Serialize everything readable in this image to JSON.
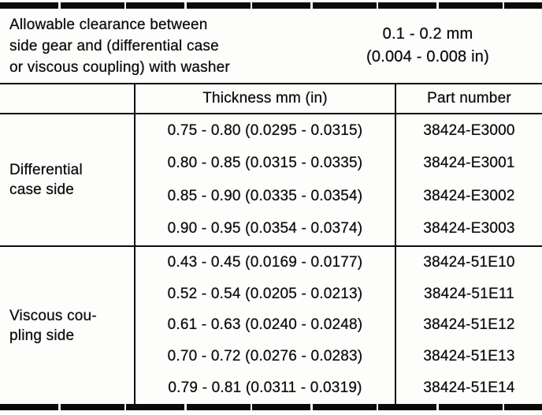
{
  "colors": {
    "ink": "#0d0d0d",
    "paper": "#fdfdfc"
  },
  "caption": {
    "text": "Allowable clearance between\nside gear and (differential case\nor viscous coupling) with washer",
    "value": "0.1 - 0.2 mm\n(0.004 - 0.008 in)"
  },
  "header": {
    "thickness_label": "Thickness mm (in)",
    "part_label": "Part number"
  },
  "sections": [
    {
      "label": "Differential\ncase side",
      "rows": [
        {
          "thickness": "0.75 - 0.80 (0.0295 - 0.0315)",
          "part": "38424-E3000"
        },
        {
          "thickness": "0.80 - 0.85 (0.0315 - 0.0335)",
          "part": "38424-E3001"
        },
        {
          "thickness": "0.85 - 0.90 (0.0335 - 0.0354)",
          "part": "38424-E3002"
        },
        {
          "thickness": "0.90 - 0.95 (0.0354 - 0.0374)",
          "part": "38424-E3003"
        }
      ]
    },
    {
      "label": "Viscous cou-\npling side",
      "rows": [
        {
          "thickness": "0.43 - 0.45 (0.0169 - 0.0177)",
          "part": "38424-51E10"
        },
        {
          "thickness": "0.52 - 0.54 (0.0205 - 0.0213)",
          "part": "38424-51E11"
        },
        {
          "thickness": "0.61 - 0.63 (0.0240 - 0.0248)",
          "part": "38424-51E12"
        },
        {
          "thickness": "0.70 - 0.72 (0.0276 - 0.0283)",
          "part": "38424-51E13"
        },
        {
          "thickness": "0.79 - 0.81 (0.0311 - 0.0319)",
          "part": "38424-51E14"
        }
      ]
    }
  ]
}
